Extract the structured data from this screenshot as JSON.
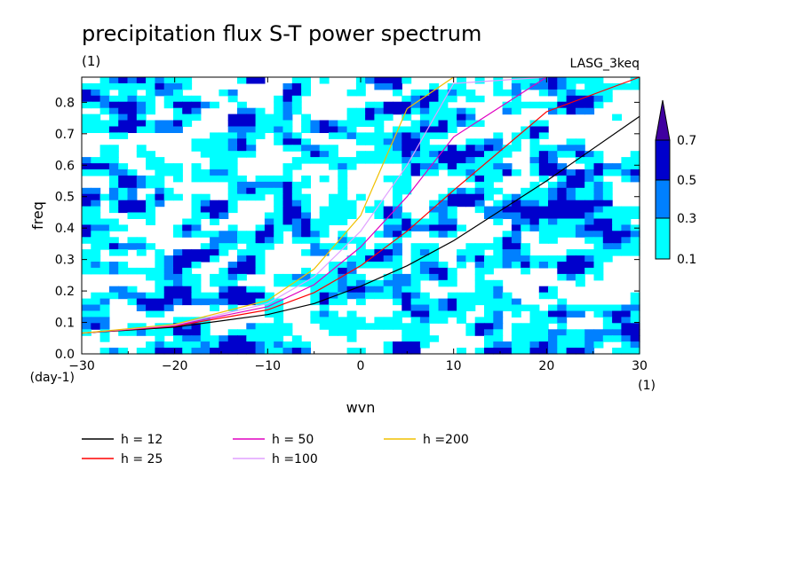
{
  "chart_data": {
    "type": "heatmap",
    "title": "precipitation flux S-T power spectrum",
    "subtitle_left": "(1)",
    "subtitle_right": "LASG_3keq",
    "xlabel": "wvn",
    "ylabel": "freq",
    "x_unit_label": "(1)",
    "y_unit_label": "(day-1)",
    "xlim": [
      -30,
      30
    ],
    "ylim": [
      0,
      0.88
    ],
    "x_ticks": [
      -30,
      -20,
      -10,
      0,
      10,
      20,
      30
    ],
    "y_ticks": [
      0.0,
      0.1,
      0.2,
      0.3,
      0.4,
      0.5,
      0.6,
      0.7,
      0.8
    ],
    "colorbar": {
      "levels": [
        0.1,
        0.3,
        0.5,
        0.7
      ],
      "labels": [
        "0.1",
        "0.3",
        "0.5",
        "0.7"
      ],
      "colors": [
        "#00ffff",
        "#0080ff",
        "#0000cc",
        "#4000a0"
      ]
    },
    "series": [
      {
        "name": "h = 12",
        "equivalent_depth": 12,
        "color": "#000000"
      },
      {
        "name": "h = 25",
        "equivalent_depth": 25,
        "color": "#ff0000"
      },
      {
        "name": "h = 50",
        "equivalent_depth": 50,
        "color": "#e000c0"
      },
      {
        "name": "h =100",
        "equivalent_depth": 100,
        "color": "#e0a0ff"
      },
      {
        "name": "h =200",
        "equivalent_depth": 200,
        "color": "#f0c000"
      }
    ],
    "curve_points": {
      "x": [
        -30,
        -20,
        -10,
        -5,
        0,
        5,
        10,
        20,
        30
      ],
      "h12": [
        0.066,
        0.085,
        0.125,
        0.16,
        0.215,
        0.28,
        0.36,
        0.55,
        0.755
      ],
      "h25": [
        0.066,
        0.088,
        0.14,
        0.195,
        0.28,
        0.39,
        0.52,
        0.77,
        1.0
      ],
      "h50": [
        0.066,
        0.09,
        0.15,
        0.22,
        0.34,
        0.5,
        0.69,
        1.0,
        1.0
      ],
      "h100": [
        0.066,
        0.092,
        0.16,
        0.245,
        0.39,
        0.6,
        0.86,
        1.0,
        1.0
      ],
      "h200": [
        0.066,
        0.094,
        0.17,
        0.27,
        0.44,
        0.78,
        1.0,
        1.0,
        1.0
      ]
    },
    "grid": false,
    "legend_position": "bottom-left"
  }
}
